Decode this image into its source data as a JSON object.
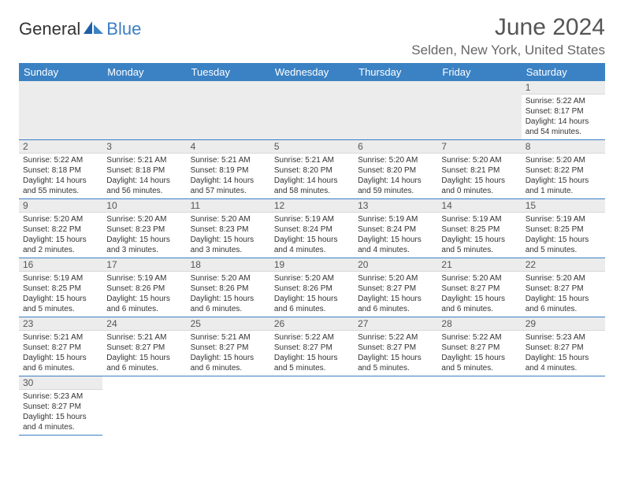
{
  "logo": {
    "text1": "General",
    "text2": "Blue"
  },
  "title": "June 2024",
  "location": "Selden, New York, United States",
  "header_bg": "#3b82c4",
  "border_color": "#3b7fc4",
  "weekdays": [
    "Sunday",
    "Monday",
    "Tuesday",
    "Wednesday",
    "Thursday",
    "Friday",
    "Saturday"
  ],
  "weeks": [
    [
      null,
      null,
      null,
      null,
      null,
      null,
      {
        "n": "1",
        "sr": "5:22 AM",
        "ss": "8:17 PM",
        "dl": "14 hours and 54 minutes."
      }
    ],
    [
      {
        "n": "2",
        "sr": "5:22 AM",
        "ss": "8:18 PM",
        "dl": "14 hours and 55 minutes."
      },
      {
        "n": "3",
        "sr": "5:21 AM",
        "ss": "8:18 PM",
        "dl": "14 hours and 56 minutes."
      },
      {
        "n": "4",
        "sr": "5:21 AM",
        "ss": "8:19 PM",
        "dl": "14 hours and 57 minutes."
      },
      {
        "n": "5",
        "sr": "5:21 AM",
        "ss": "8:20 PM",
        "dl": "14 hours and 58 minutes."
      },
      {
        "n": "6",
        "sr": "5:20 AM",
        "ss": "8:20 PM",
        "dl": "14 hours and 59 minutes."
      },
      {
        "n": "7",
        "sr": "5:20 AM",
        "ss": "8:21 PM",
        "dl": "15 hours and 0 minutes."
      },
      {
        "n": "8",
        "sr": "5:20 AM",
        "ss": "8:22 PM",
        "dl": "15 hours and 1 minute."
      }
    ],
    [
      {
        "n": "9",
        "sr": "5:20 AM",
        "ss": "8:22 PM",
        "dl": "15 hours and 2 minutes."
      },
      {
        "n": "10",
        "sr": "5:20 AM",
        "ss": "8:23 PM",
        "dl": "15 hours and 3 minutes."
      },
      {
        "n": "11",
        "sr": "5:20 AM",
        "ss": "8:23 PM",
        "dl": "15 hours and 3 minutes."
      },
      {
        "n": "12",
        "sr": "5:19 AM",
        "ss": "8:24 PM",
        "dl": "15 hours and 4 minutes."
      },
      {
        "n": "13",
        "sr": "5:19 AM",
        "ss": "8:24 PM",
        "dl": "15 hours and 4 minutes."
      },
      {
        "n": "14",
        "sr": "5:19 AM",
        "ss": "8:25 PM",
        "dl": "15 hours and 5 minutes."
      },
      {
        "n": "15",
        "sr": "5:19 AM",
        "ss": "8:25 PM",
        "dl": "15 hours and 5 minutes."
      }
    ],
    [
      {
        "n": "16",
        "sr": "5:19 AM",
        "ss": "8:25 PM",
        "dl": "15 hours and 5 minutes."
      },
      {
        "n": "17",
        "sr": "5:19 AM",
        "ss": "8:26 PM",
        "dl": "15 hours and 6 minutes."
      },
      {
        "n": "18",
        "sr": "5:20 AM",
        "ss": "8:26 PM",
        "dl": "15 hours and 6 minutes."
      },
      {
        "n": "19",
        "sr": "5:20 AM",
        "ss": "8:26 PM",
        "dl": "15 hours and 6 minutes."
      },
      {
        "n": "20",
        "sr": "5:20 AM",
        "ss": "8:27 PM",
        "dl": "15 hours and 6 minutes."
      },
      {
        "n": "21",
        "sr": "5:20 AM",
        "ss": "8:27 PM",
        "dl": "15 hours and 6 minutes."
      },
      {
        "n": "22",
        "sr": "5:20 AM",
        "ss": "8:27 PM",
        "dl": "15 hours and 6 minutes."
      }
    ],
    [
      {
        "n": "23",
        "sr": "5:21 AM",
        "ss": "8:27 PM",
        "dl": "15 hours and 6 minutes."
      },
      {
        "n": "24",
        "sr": "5:21 AM",
        "ss": "8:27 PM",
        "dl": "15 hours and 6 minutes."
      },
      {
        "n": "25",
        "sr": "5:21 AM",
        "ss": "8:27 PM",
        "dl": "15 hours and 6 minutes."
      },
      {
        "n": "26",
        "sr": "5:22 AM",
        "ss": "8:27 PM",
        "dl": "15 hours and 5 minutes."
      },
      {
        "n": "27",
        "sr": "5:22 AM",
        "ss": "8:27 PM",
        "dl": "15 hours and 5 minutes."
      },
      {
        "n": "28",
        "sr": "5:22 AM",
        "ss": "8:27 PM",
        "dl": "15 hours and 5 minutes."
      },
      {
        "n": "29",
        "sr": "5:23 AM",
        "ss": "8:27 PM",
        "dl": "15 hours and 4 minutes."
      }
    ],
    [
      {
        "n": "30",
        "sr": "5:23 AM",
        "ss": "8:27 PM",
        "dl": "15 hours and 4 minutes."
      },
      null,
      null,
      null,
      null,
      null,
      null
    ]
  ],
  "labels": {
    "sunrise": "Sunrise:",
    "sunset": "Sunset:",
    "daylight": "Daylight:"
  }
}
